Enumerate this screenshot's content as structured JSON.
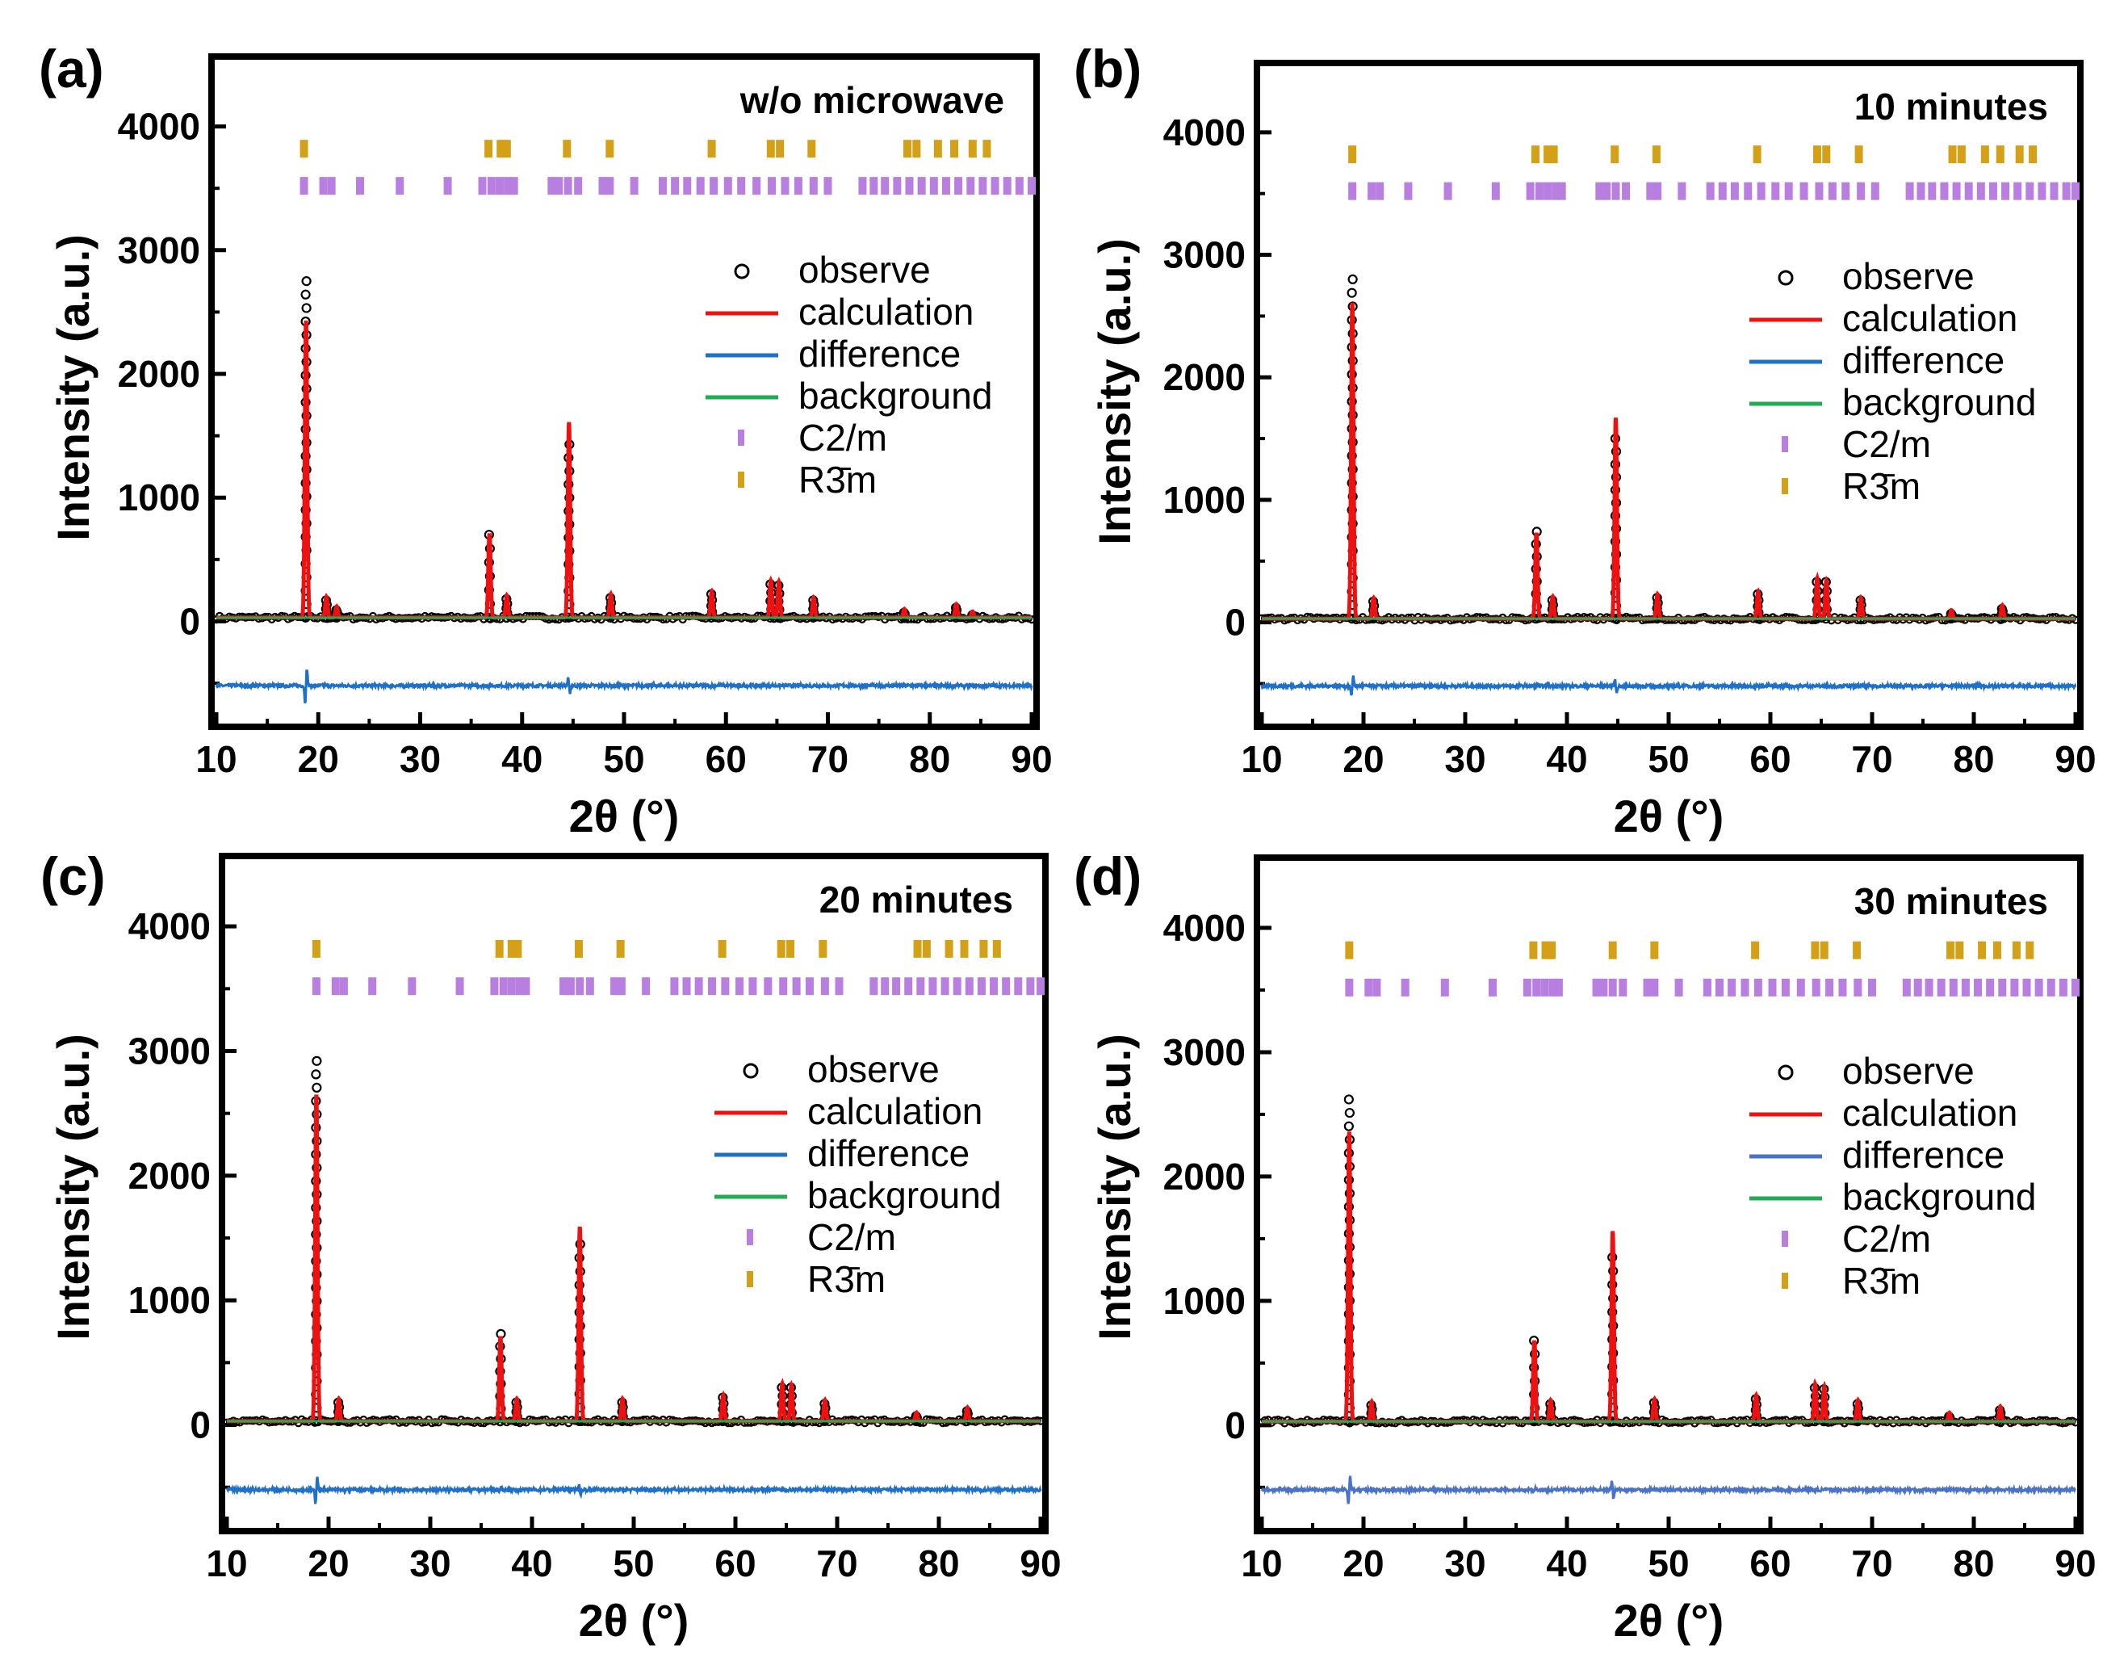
{
  "figure": {
    "x_tick_labels": [
      "10",
      "20",
      "30",
      "40",
      "50",
      "60",
      "70",
      "80",
      "90"
    ],
    "y_tick_labels": [
      "0",
      "1000",
      "2000",
      "3000",
      "4000"
    ]
  },
  "chart_data": [
    {
      "type": "line",
      "panel": "(a)",
      "title": "w/o microwave",
      "xlabel": "2θ (°)",
      "ylabel": "Intensity (a.u.)",
      "xlim": [
        10,
        90
      ],
      "ylim": [
        -800,
        4500
      ],
      "legend": [
        "observe",
        "calculation",
        "difference",
        "background",
        "C2/m",
        "R3̄m"
      ],
      "legend_position": "right",
      "colors": {
        "observe": "#000000",
        "calculation": "#ee1111",
        "difference": "#1e70c8",
        "background": "#22aa55",
        "C2m": "#b87fe0",
        "R3m": "#d4a017"
      },
      "peaks": [
        {
          "x": 18.8,
          "y": 2400,
          "obs": 2750
        },
        {
          "x": 20.8,
          "y": 170,
          "obs": 170
        },
        {
          "x": 21.8,
          "y": 90,
          "obs": 90
        },
        {
          "x": 36.8,
          "y": 680,
          "obs": 700
        },
        {
          "x": 38.5,
          "y": 180,
          "obs": 180
        },
        {
          "x": 44.6,
          "y": 1580,
          "obs": 1430
        },
        {
          "x": 48.7,
          "y": 190,
          "obs": 190
        },
        {
          "x": 58.6,
          "y": 210,
          "obs": 220
        },
        {
          "x": 64.4,
          "y": 300,
          "obs": 300
        },
        {
          "x": 65.2,
          "y": 290,
          "obs": 290
        },
        {
          "x": 68.6,
          "y": 160,
          "obs": 170
        },
        {
          "x": 77.5,
          "y": 70,
          "obs": 70
        },
        {
          "x": 82.6,
          "y": 110,
          "obs": 110
        },
        {
          "x": 84.2,
          "y": 50,
          "obs": 50
        }
      ],
      "background_level": 30,
      "difference_offset": -520,
      "r3m_ticks": [
        18.6,
        36.7,
        37.9,
        38.5,
        44.4,
        48.6,
        58.6,
        64.4,
        65.3,
        68.4,
        77.8,
        78.7,
        80.8,
        82.4,
        84.2,
        85.6
      ],
      "c2m_ticks": [
        18.6,
        20.5,
        21.3,
        24.1,
        28.0,
        32.7,
        36.1,
        37.0,
        37.8,
        38.6,
        39.2,
        42.9,
        43.6,
        44.5,
        45.5,
        47.9,
        48.6,
        51.0,
        53.8,
        55.0,
        56.2,
        57.5,
        58.8,
        60.2,
        61.5,
        63.0,
        64.5,
        65.8,
        67.1,
        68.6,
        70.0,
        73.4,
        74.5,
        75.6,
        76.8,
        78.0,
        79.2,
        80.4,
        81.6,
        82.8,
        84.0,
        85.2,
        86.4,
        87.6,
        88.8,
        90.0
      ]
    },
    {
      "type": "line",
      "panel": "(b)",
      "title": "10 minutes",
      "xlabel": "2θ (°)",
      "ylabel": "Intensity (a.u.)",
      "xlim": [
        10,
        90
      ],
      "ylim": [
        -800,
        4500
      ],
      "legend": [
        "observe",
        "calculation",
        "difference",
        "background",
        "C2/m",
        "R3̄m"
      ],
      "legend_position": "right",
      "colors": {
        "observe": "#000000",
        "calculation": "#ee1111",
        "difference": "#1e70c8",
        "background": "#22aa55",
        "C2m": "#b87fe0",
        "R3m": "#d4a017"
      },
      "peaks": [
        {
          "x": 18.9,
          "y": 2580,
          "obs": 2800
        },
        {
          "x": 21.0,
          "y": 170,
          "obs": 170
        },
        {
          "x": 37.0,
          "y": 700,
          "obs": 740
        },
        {
          "x": 38.6,
          "y": 180,
          "obs": 180
        },
        {
          "x": 44.8,
          "y": 1640,
          "obs": 1500
        },
        {
          "x": 48.9,
          "y": 200,
          "obs": 200
        },
        {
          "x": 58.8,
          "y": 220,
          "obs": 230
        },
        {
          "x": 64.6,
          "y": 330,
          "obs": 330
        },
        {
          "x": 65.5,
          "y": 310,
          "obs": 330
        },
        {
          "x": 68.9,
          "y": 170,
          "obs": 180
        },
        {
          "x": 77.8,
          "y": 70,
          "obs": 70
        },
        {
          "x": 82.8,
          "y": 110,
          "obs": 110
        }
      ],
      "background_level": 30,
      "difference_offset": -520,
      "r3m_ticks": [
        18.9,
        36.9,
        38.1,
        38.7,
        44.7,
        48.8,
        58.7,
        64.6,
        65.5,
        68.7,
        77.9,
        78.8,
        81.1,
        82.6,
        84.5,
        85.8
      ],
      "c2m_ticks": [
        18.9,
        20.8,
        21.6,
        24.4,
        28.3,
        33.0,
        36.4,
        37.3,
        38.1,
        38.9,
        39.5,
        43.2,
        43.9,
        44.8,
        45.8,
        48.2,
        48.9,
        51.3,
        54.1,
        55.3,
        56.5,
        57.8,
        59.1,
        60.5,
        61.8,
        63.3,
        64.8,
        66.1,
        67.4,
        68.9,
        70.3,
        73.7,
        74.8,
        75.9,
        77.1,
        78.3,
        79.5,
        80.7,
        81.9,
        83.1,
        84.3,
        85.5,
        86.7,
        87.9,
        89.1,
        90.0
      ]
    },
    {
      "type": "line",
      "panel": "(c)",
      "title": "20 minutes",
      "xlabel": "2θ (°)",
      "ylabel": "Intensity (a.u.)",
      "xlim": [
        10,
        90
      ],
      "ylim": [
        -800,
        4500
      ],
      "legend": [
        "observe",
        "calculation",
        "difference",
        "background",
        "C2/m",
        "R3̄m"
      ],
      "legend_position": "right",
      "colors": {
        "observe": "#000000",
        "calculation": "#ee1111",
        "difference": "#1e70c8",
        "background": "#22aa55",
        "C2m": "#b87fe0",
        "R3m": "#d4a017"
      },
      "peaks": [
        {
          "x": 18.8,
          "y": 2620,
          "obs": 2920
        },
        {
          "x": 21.0,
          "y": 180,
          "obs": 180
        },
        {
          "x": 36.9,
          "y": 680,
          "obs": 730
        },
        {
          "x": 38.5,
          "y": 180,
          "obs": 180
        },
        {
          "x": 44.7,
          "y": 1560,
          "obs": 1450
        },
        {
          "x": 48.9,
          "y": 180,
          "obs": 180
        },
        {
          "x": 58.8,
          "y": 210,
          "obs": 220
        },
        {
          "x": 64.6,
          "y": 300,
          "obs": 300
        },
        {
          "x": 65.5,
          "y": 290,
          "obs": 300
        },
        {
          "x": 68.8,
          "y": 170,
          "obs": 170
        },
        {
          "x": 77.8,
          "y": 70,
          "obs": 70
        },
        {
          "x": 82.8,
          "y": 110,
          "obs": 110
        }
      ],
      "background_level": 30,
      "difference_offset": -520,
      "r3m_ticks": [
        18.8,
        36.8,
        38.0,
        38.6,
        44.6,
        48.7,
        58.7,
        64.5,
        65.4,
        68.6,
        77.9,
        78.8,
        81.0,
        82.5,
        84.4,
        85.7
      ],
      "c2m_ticks": [
        18.8,
        20.7,
        21.5,
        24.3,
        28.2,
        32.9,
        36.3,
        37.2,
        38.0,
        38.8,
        39.4,
        43.1,
        43.8,
        44.7,
        45.7,
        48.1,
        48.8,
        51.2,
        54.0,
        55.2,
        56.4,
        57.7,
        59.0,
        60.4,
        61.7,
        63.2,
        64.7,
        66.0,
        67.3,
        68.8,
        70.2,
        73.6,
        74.7,
        75.8,
        77.0,
        78.2,
        79.4,
        80.6,
        81.8,
        83.0,
        84.2,
        85.4,
        86.6,
        87.8,
        89.0,
        90.0
      ]
    },
    {
      "type": "line",
      "panel": "(d)",
      "title": "30 minutes",
      "xlabel": "2θ (°)",
      "ylabel": "Intensity (a.u.)",
      "xlim": [
        10,
        90
      ],
      "ylim": [
        -800,
        4500
      ],
      "legend": [
        "observe",
        "calculation",
        "difference",
        "background",
        "C2/m",
        "R3̄m"
      ],
      "legend_position": "right",
      "colors": {
        "observe": "#000000",
        "calculation": "#ee1111",
        "difference": "#4a73c8",
        "background": "#22aa55",
        "C2m": "#b87fe0",
        "R3m": "#d4a017"
      },
      "peaks": [
        {
          "x": 18.6,
          "y": 2330,
          "obs": 2620
        },
        {
          "x": 20.8,
          "y": 160,
          "obs": 160
        },
        {
          "x": 36.8,
          "y": 650,
          "obs": 680
        },
        {
          "x": 38.4,
          "y": 170,
          "obs": 170
        },
        {
          "x": 44.5,
          "y": 1530,
          "obs": 1350
        },
        {
          "x": 48.6,
          "y": 180,
          "obs": 180
        },
        {
          "x": 58.6,
          "y": 210,
          "obs": 210
        },
        {
          "x": 64.4,
          "y": 300,
          "obs": 300
        },
        {
          "x": 65.3,
          "y": 280,
          "obs": 290
        },
        {
          "x": 68.6,
          "y": 170,
          "obs": 170
        },
        {
          "x": 77.6,
          "y": 70,
          "obs": 70
        },
        {
          "x": 82.6,
          "y": 120,
          "obs": 120
        }
      ],
      "background_level": 30,
      "difference_offset": -520,
      "r3m_ticks": [
        18.6,
        36.7,
        37.9,
        38.5,
        44.5,
        48.6,
        58.5,
        64.4,
        65.3,
        68.5,
        77.7,
        78.6,
        80.8,
        82.3,
        84.2,
        85.5
      ],
      "c2m_ticks": [
        18.6,
        20.5,
        21.3,
        24.1,
        28.0,
        32.7,
        36.1,
        37.0,
        37.8,
        38.6,
        39.2,
        42.9,
        43.6,
        44.5,
        45.5,
        47.9,
        48.6,
        51.0,
        53.8,
        55.0,
        56.2,
        57.5,
        58.8,
        60.2,
        61.5,
        63.0,
        64.5,
        65.8,
        67.1,
        68.6,
        70.0,
        73.4,
        74.5,
        75.6,
        76.8,
        78.0,
        79.2,
        80.4,
        81.6,
        82.8,
        84.0,
        85.2,
        86.4,
        87.6,
        88.8,
        90.0
      ]
    }
  ]
}
